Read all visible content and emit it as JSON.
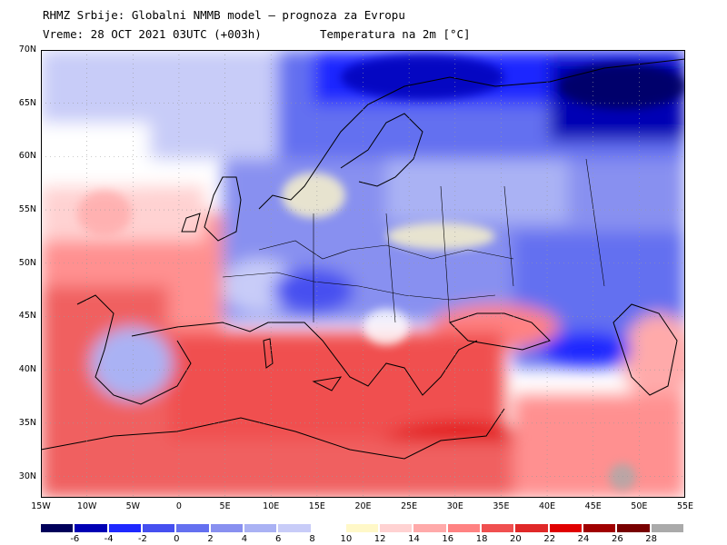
{
  "header": {
    "title": "RHMZ Srbije: Globalni NMMB model — prognoza za Evropu",
    "run": "Vreme: 28 OCT 2021 03UTC (+003h)",
    "parameter": "Temperatura na 2m [°C]"
  },
  "axes": {
    "lat_labels": [
      "70N",
      "65N",
      "60N",
      "55N",
      "50N",
      "45N",
      "40N",
      "35N",
      "30N"
    ],
    "lon_labels": [
      "15W",
      "10W",
      "5W",
      "0",
      "5E",
      "10E",
      "15E",
      "20E",
      "25E",
      "30E",
      "35E",
      "40E",
      "45E",
      "50E",
      "55E"
    ],
    "lat_range": [
      28,
      70
    ],
    "lon_range": [
      -15,
      55
    ],
    "gridlines": "dotted"
  },
  "legend": {
    "labels": [
      "-6",
      "-4",
      "-2",
      "0",
      "2",
      "4",
      "6",
      "8",
      "10",
      "12",
      "14",
      "16",
      "18",
      "20",
      "22",
      "24",
      "26",
      "28"
    ],
    "colors": [
      "#00005a",
      "#0000b4",
      "#1e28ff",
      "#4650f0",
      "#6470f0",
      "#8890f0",
      "#aab2f4",
      "#c8ccf8",
      "#ffffff",
      "#fff8c8",
      "#ffd2d2",
      "#ffaaaa",
      "#ff8282",
      "#f05050",
      "#e02828",
      "#e00000",
      "#a00000",
      "#780000",
      "#aaaaaa"
    ]
  }
}
